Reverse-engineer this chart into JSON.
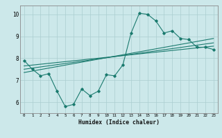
{
  "xlabel": "Humidex (Indice chaleur)",
  "ylabel": "",
  "bg_color": "#cce8ea",
  "grid_color": "#aacdd0",
  "line_color": "#1a7a6e",
  "xlim": [
    -0.5,
    23.5
  ],
  "ylim": [
    5.5,
    10.4
  ],
  "xticks": [
    0,
    1,
    2,
    3,
    4,
    5,
    6,
    7,
    8,
    9,
    10,
    11,
    12,
    13,
    14,
    15,
    16,
    17,
    18,
    19,
    20,
    21,
    22,
    23
  ],
  "yticks": [
    6,
    7,
    8,
    9,
    10
  ],
  "main_x": [
    0,
    1,
    2,
    3,
    4,
    5,
    6,
    7,
    8,
    9,
    10,
    11,
    12,
    13,
    14,
    15,
    16,
    17,
    18,
    19,
    20,
    21,
    22,
    23
  ],
  "main_y": [
    7.9,
    7.5,
    7.2,
    7.3,
    6.5,
    5.8,
    5.9,
    6.6,
    6.3,
    6.5,
    7.25,
    7.2,
    7.7,
    9.15,
    10.05,
    10.0,
    9.7,
    9.15,
    9.25,
    8.9,
    8.85,
    8.5,
    8.5,
    8.4
  ],
  "trend1_x": [
    0,
    23
  ],
  "trend1_y": [
    7.65,
    8.55
  ],
  "trend2_x": [
    0,
    23
  ],
  "trend2_y": [
    7.5,
    8.7
  ],
  "trend3_x": [
    0,
    23
  ],
  "trend3_y": [
    7.35,
    8.9
  ]
}
